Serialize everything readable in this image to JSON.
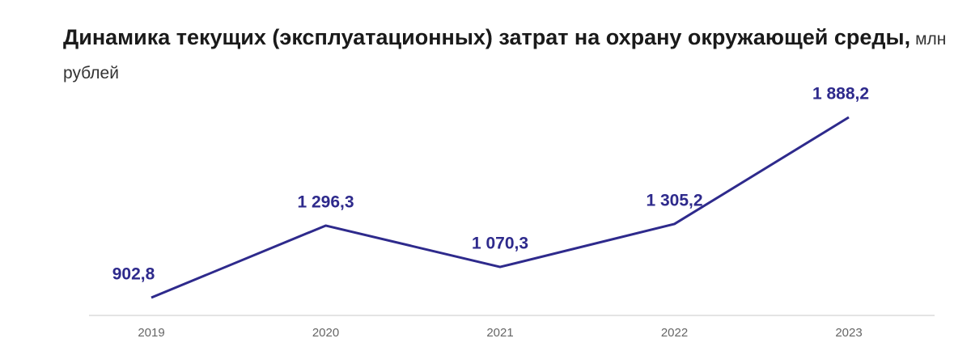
{
  "chart_data": {
    "type": "line",
    "title": "Динамика текущих (эксплуатационных) затрат на охрану окружающей среды,",
    "subtitle": "млн рублей",
    "categories": [
      "2019",
      "2020",
      "2021",
      "2022",
      "2023"
    ],
    "values": [
      902.8,
      1296.3,
      1070.3,
      1305.2,
      1888.2
    ],
    "value_labels": [
      "902,8",
      "1 296,3",
      "1 070,3",
      "1 305,2",
      "1 888,2"
    ],
    "color": "#2e2a8c"
  }
}
